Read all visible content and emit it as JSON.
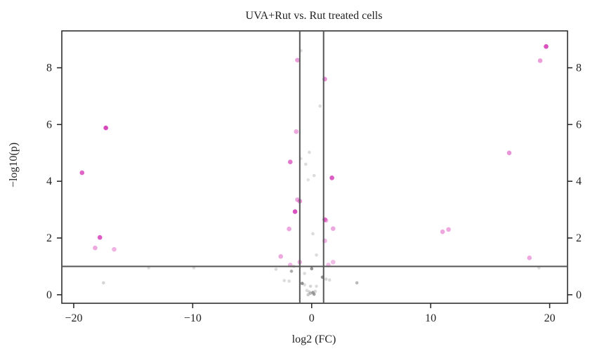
{
  "chart_data": {
    "type": "scatter",
    "title": "UVA+Rut vs. Rut treated cells",
    "xlabel": "log2 (FC)",
    "ylabel": "−log10(p)",
    "xlim": [
      -21,
      21.5
    ],
    "ylim": [
      -0.3,
      9.3
    ],
    "x_ticks": [
      -20,
      -10,
      0,
      10,
      20
    ],
    "x_tick_labels": [
      "−20",
      "−10",
      "0",
      "10",
      "20"
    ],
    "y_ticks": [
      0,
      2,
      4,
      6,
      8
    ],
    "y_tick_labels": [
      "0",
      "2",
      "4",
      "6",
      "8"
    ],
    "y_axis_right": true,
    "grid": false,
    "thresholds": {
      "log2fc_lower": -1,
      "log2fc_upper": 1,
      "neg_log10_p": 1
    },
    "colors": {
      "significant": "#d63fb8",
      "not_significant": "#8a8a8a",
      "threshold_line": "#555555"
    },
    "series": [
      {
        "status": "significant",
        "points": [
          {
            "x": 19.7,
            "y": 8.75,
            "strength": 0.9
          },
          {
            "x": 19.2,
            "y": 8.25,
            "strength": 0.5
          },
          {
            "x": -1.2,
            "y": 8.27,
            "strength": 0.5
          },
          {
            "x": 1.1,
            "y": 7.6,
            "strength": 0.6
          },
          {
            "x": -17.3,
            "y": 5.88,
            "strength": 0.95
          },
          {
            "x": -1.3,
            "y": 5.75,
            "strength": 0.45
          },
          {
            "x": 16.6,
            "y": 5.0,
            "strength": 0.55
          },
          {
            "x": -1.8,
            "y": 4.68,
            "strength": 0.7
          },
          {
            "x": -19.3,
            "y": 4.3,
            "strength": 0.8
          },
          {
            "x": 1.7,
            "y": 4.12,
            "strength": 0.85
          },
          {
            "x": -1.2,
            "y": 3.35,
            "strength": 0.45
          },
          {
            "x": -1.0,
            "y": 3.3,
            "strength": 0.55
          },
          {
            "x": -1.4,
            "y": 2.93,
            "strength": 0.9
          },
          {
            "x": 1.1,
            "y": 2.65,
            "strength": 0.7
          },
          {
            "x": 1.2,
            "y": 2.62,
            "strength": 0.4
          },
          {
            "x": -1.9,
            "y": 2.32,
            "strength": 0.45
          },
          {
            "x": 1.8,
            "y": 2.33,
            "strength": 0.45
          },
          {
            "x": 11.5,
            "y": 2.3,
            "strength": 0.45
          },
          {
            "x": 11.0,
            "y": 2.22,
            "strength": 0.45
          },
          {
            "x": -17.8,
            "y": 2.02,
            "strength": 0.85
          },
          {
            "x": 1.1,
            "y": 1.9,
            "strength": 0.4
          },
          {
            "x": -18.2,
            "y": 1.65,
            "strength": 0.45
          },
          {
            "x": -16.6,
            "y": 1.6,
            "strength": 0.4
          },
          {
            "x": -2.6,
            "y": 1.35,
            "strength": 0.45
          },
          {
            "x": 18.3,
            "y": 1.3,
            "strength": 0.45
          },
          {
            "x": -1.0,
            "y": 1.15,
            "strength": 0.4
          },
          {
            "x": 1.8,
            "y": 1.15,
            "strength": 0.35
          },
          {
            "x": 1.4,
            "y": 1.05,
            "strength": 0.35
          },
          {
            "x": -1.8,
            "y": 1.05,
            "strength": 0.4
          }
        ]
      },
      {
        "status": "not_significant",
        "points": [
          {
            "x": -0.9,
            "y": 8.6,
            "strength": 0.3
          },
          {
            "x": 0.7,
            "y": 6.65,
            "strength": 0.3
          },
          {
            "x": -0.2,
            "y": 5.02,
            "strength": 0.3
          },
          {
            "x": -0.9,
            "y": 4.8,
            "strength": 0.25
          },
          {
            "x": -0.5,
            "y": 4.6,
            "strength": 0.3
          },
          {
            "x": 0.2,
            "y": 4.2,
            "strength": 0.3
          },
          {
            "x": -0.3,
            "y": 4.05,
            "strength": 0.25
          },
          {
            "x": 0.1,
            "y": 2.15,
            "strength": 0.3
          },
          {
            "x": 0.4,
            "y": 1.4,
            "strength": 0.3
          },
          {
            "x": -1.5,
            "y": 1.0,
            "strength": 0.3
          },
          {
            "x": -13.7,
            "y": 0.95,
            "strength": 0.3
          },
          {
            "x": -9.9,
            "y": 0.95,
            "strength": 0.3
          },
          {
            "x": 19.1,
            "y": 0.95,
            "strength": 0.3
          },
          {
            "x": -3.0,
            "y": 0.9,
            "strength": 0.3
          },
          {
            "x": 0.0,
            "y": 0.92,
            "strength": 0.95
          },
          {
            "x": -1.7,
            "y": 0.83,
            "strength": 0.7
          },
          {
            "x": -0.6,
            "y": 0.75,
            "strength": 0.3
          },
          {
            "x": 0.9,
            "y": 0.62,
            "strength": 0.9
          },
          {
            "x": 1.2,
            "y": 0.55,
            "strength": 0.35
          },
          {
            "x": 1.5,
            "y": 0.52,
            "strength": 0.3
          },
          {
            "x": -2.3,
            "y": 0.5,
            "strength": 0.3
          },
          {
            "x": -1.9,
            "y": 0.48,
            "strength": 0.3
          },
          {
            "x": -17.5,
            "y": 0.42,
            "strength": 0.35
          },
          {
            "x": 3.8,
            "y": 0.42,
            "strength": 0.6
          },
          {
            "x": -0.8,
            "y": 0.4,
            "strength": 0.95
          },
          {
            "x": -0.6,
            "y": 0.35,
            "strength": 0.3
          },
          {
            "x": -0.1,
            "y": 0.3,
            "strength": 0.35
          },
          {
            "x": 0.4,
            "y": 0.3,
            "strength": 0.3
          },
          {
            "x": -0.4,
            "y": 0.15,
            "strength": 0.3
          },
          {
            "x": -0.2,
            "y": 0.1,
            "strength": 0.35
          },
          {
            "x": 0.1,
            "y": 0.08,
            "strength": 0.85
          },
          {
            "x": -0.1,
            "y": 0.05,
            "strength": 0.55
          },
          {
            "x": 0.3,
            "y": 0.12,
            "strength": 0.35
          },
          {
            "x": 0.2,
            "y": 0.02,
            "strength": 0.8
          },
          {
            "x": -0.3,
            "y": 0.0,
            "strength": 0.45
          }
        ]
      }
    ]
  }
}
